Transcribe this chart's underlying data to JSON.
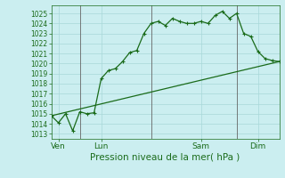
{
  "title": "Pression niveau de la mer( hPa )",
  "bg_color": "#cbeef0",
  "grid_color": "#a8d8d8",
  "line_color": "#1a6b1a",
  "vline_color": "#666666",
  "ylim": [
    1012.5,
    1025.8
  ],
  "yticks": [
    1013,
    1014,
    1015,
    1016,
    1017,
    1018,
    1019,
    1020,
    1021,
    1022,
    1023,
    1024,
    1025
  ],
  "xlim": [
    0,
    16
  ],
  "day_labels": [
    "Ven",
    "Lun",
    "Sam",
    "Dim"
  ],
  "day_positions": [
    0.5,
    3.5,
    10.5,
    14.5
  ],
  "vline_positions": [
    2,
    7,
    13
  ],
  "series1_x": [
    0,
    0.5,
    1,
    1.5,
    2,
    2.5,
    3,
    3.5,
    4,
    4.5,
    5,
    5.5,
    6,
    6.5,
    7,
    7.5,
    8,
    8.5,
    9,
    9.5,
    10,
    10.5,
    11,
    11.5,
    12,
    12.5,
    13,
    13.5,
    14,
    14.5,
    15,
    15.5,
    16
  ],
  "series1_y": [
    1014.8,
    1014.1,
    1015.0,
    1013.3,
    1015.2,
    1015.0,
    1015.1,
    1018.5,
    1019.3,
    1019.5,
    1020.2,
    1021.1,
    1021.3,
    1023.0,
    1024.0,
    1024.2,
    1023.8,
    1024.5,
    1024.2,
    1024.0,
    1024.0,
    1024.2,
    1024.0,
    1024.8,
    1025.2,
    1024.5,
    1025.0,
    1023.0,
    1022.7,
    1021.2,
    1020.5,
    1020.3,
    1020.2
  ],
  "series2_x": [
    0,
    16
  ],
  "series2_y": [
    1014.8,
    1020.2
  ],
  "ytick_fontsize": 5.5,
  "xtick_fontsize": 6.5,
  "xlabel_fontsize": 7.5
}
